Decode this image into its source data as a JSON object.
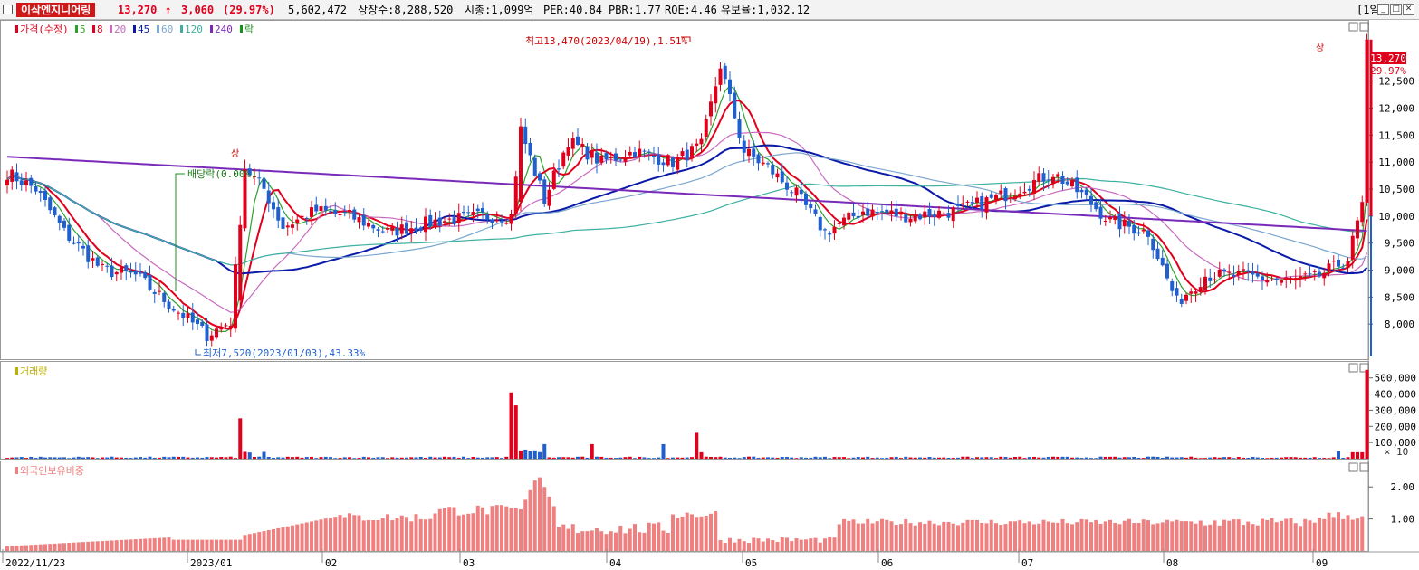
{
  "header": {
    "stock_name": "이삭엔지니어링",
    "price": "13,270",
    "arrow": "↑",
    "change": "3,060",
    "change_pct": "(29.97%)",
    "volume": "5,602,472",
    "shares_label": "상장수:8,288,520",
    "mcap_label": "시총:1,099억",
    "per_label": "PER:40.84",
    "pbr_label": "PBR:1.77",
    "roe_label": "ROE:4.46",
    "float_label": "유보율:1,032.12",
    "period": "[1일]",
    "window_buttons": [
      "_",
      "□",
      "✕"
    ]
  },
  "price_panel": {
    "legend": [
      {
        "label": "가격(수정)",
        "color": "#e0001b"
      },
      {
        "label": "5",
        "color": "#2ca02c"
      },
      {
        "label": "8",
        "color": "#e0001b"
      },
      {
        "label": "20",
        "color": "#c86bc0"
      },
      {
        "label": "45",
        "color": "#0a1aa8"
      },
      {
        "label": "60",
        "color": "#7aa7cf"
      },
      {
        "label": "120",
        "color": "#3db0a0"
      },
      {
        "label": "240",
        "color": "#7a2ab8"
      },
      {
        "label": "락",
        "color": "#1a8f1a"
      }
    ],
    "current_price_label": "13,270",
    "current_pct_label": "29.97%",
    "annotation_high": "최고13,470(2023/04/19),1.51%",
    "annotation_low": "최저7,520(2023/01/03),43.33%",
    "annotation_dividend": "배당락(0.00%)",
    "upper_limit_marks": [
      "상",
      "상"
    ],
    "y_ticks": [
      "12,500",
      "12,000",
      "11,500",
      "11,000",
      "10,500",
      "10,000",
      "9,500",
      "9,000",
      "8,500",
      "8,000"
    ]
  },
  "volume_panel": {
    "legend": "거래량",
    "legend_color": "#c0b000",
    "y_ticks": [
      "500,000",
      "400,000",
      "300,000",
      "200,000",
      "100,000"
    ],
    "multiplier": "× 10"
  },
  "foreign_panel": {
    "legend": "외국인보유비중",
    "legend_color": "#f08080",
    "y_ticks": [
      "2.00",
      "1.00"
    ]
  },
  "x_axis": {
    "labels": [
      "2022/11/23",
      "2023/01",
      "02",
      "03",
      "04",
      "05",
      "06",
      "07",
      "08",
      "09"
    ]
  },
  "colors": {
    "up": "#e0001b",
    "down": "#1f5fd0",
    "foreign_bar": "#f08080"
  },
  "chart_data": {
    "type": "candlestick",
    "price_range": [
      7400,
      13600
    ],
    "volume_range": [
      0,
      560000
    ],
    "foreign_range": [
      0,
      2.6
    ],
    "note_dates": "daily candles from 2022/11/23 to 2023/09",
    "anchors": [
      {
        "i": 0,
        "c": 10800
      },
      {
        "i": 6,
        "c": 10500
      },
      {
        "i": 12,
        "c": 9700
      },
      {
        "i": 20,
        "c": 9000
      },
      {
        "i": 27,
        "c": 8900
      },
      {
        "i": 35,
        "c": 8300
      },
      {
        "i": 42,
        "c": 7800
      },
      {
        "i": 47,
        "c": 8050
      },
      {
        "i": 50,
        "c": 10900
      },
      {
        "i": 54,
        "c": 10500
      },
      {
        "i": 58,
        "c": 9800
      },
      {
        "i": 65,
        "c": 10100
      },
      {
        "i": 72,
        "c": 10000
      },
      {
        "i": 80,
        "c": 9700
      },
      {
        "i": 90,
        "c": 9900
      },
      {
        "i": 100,
        "c": 10000
      },
      {
        "i": 106,
        "c": 10000
      },
      {
        "i": 108,
        "c": 11600
      },
      {
        "i": 113,
        "c": 10300
      },
      {
        "i": 118,
        "c": 11400
      },
      {
        "i": 125,
        "c": 11000
      },
      {
        "i": 132,
        "c": 11200
      },
      {
        "i": 140,
        "c": 11000
      },
      {
        "i": 146,
        "c": 11300
      },
      {
        "i": 150,
        "c": 12800
      },
      {
        "i": 155,
        "c": 11200
      },
      {
        "i": 160,
        "c": 10900
      },
      {
        "i": 166,
        "c": 10400
      },
      {
        "i": 172,
        "c": 9700
      },
      {
        "i": 180,
        "c": 10100
      },
      {
        "i": 190,
        "c": 10000
      },
      {
        "i": 200,
        "c": 10100
      },
      {
        "i": 210,
        "c": 10400
      },
      {
        "i": 220,
        "c": 10800
      },
      {
        "i": 226,
        "c": 10400
      },
      {
        "i": 232,
        "c": 9900
      },
      {
        "i": 240,
        "c": 9700
      },
      {
        "i": 246,
        "c": 8400
      },
      {
        "i": 252,
        "c": 8900
      },
      {
        "i": 260,
        "c": 8900
      },
      {
        "i": 268,
        "c": 8800
      },
      {
        "i": 275,
        "c": 8850
      },
      {
        "i": 282,
        "c": 9200
      },
      {
        "i": 285,
        "c": 10200
      },
      {
        "i": 286,
        "c": 13270
      }
    ]
  }
}
